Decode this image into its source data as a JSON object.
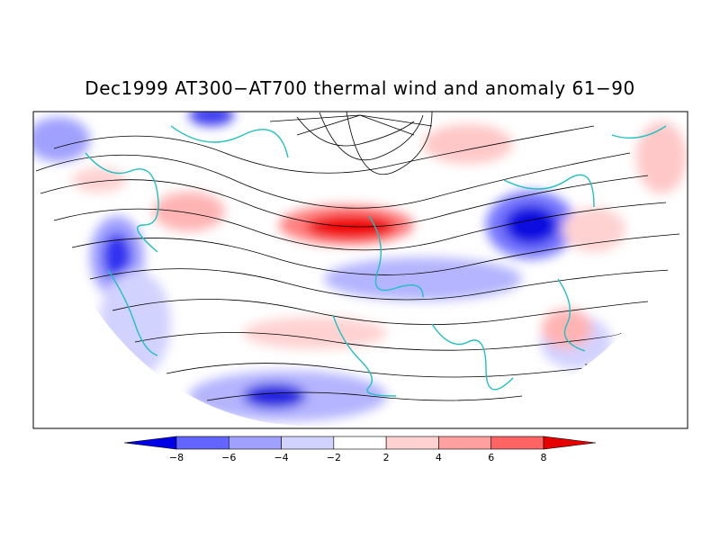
{
  "title": "Dec1999 AT300−AT700 thermal wind and anomaly 61−90",
  "colorbar": {
    "tick_labels": [
      "−8",
      "−6",
      "−4",
      "−2",
      "2",
      "4",
      "6",
      "8"
    ],
    "colors": [
      "#0000e6",
      "#6464ff",
      "#a0a0ff",
      "#d2d2ff",
      "#ffffff",
      "#ffd2d2",
      "#ffa0a0",
      "#ff6464",
      "#e60000"
    ]
  },
  "map": {
    "coastline_color": "#20c0c0",
    "streamline_color": "#000000"
  }
}
